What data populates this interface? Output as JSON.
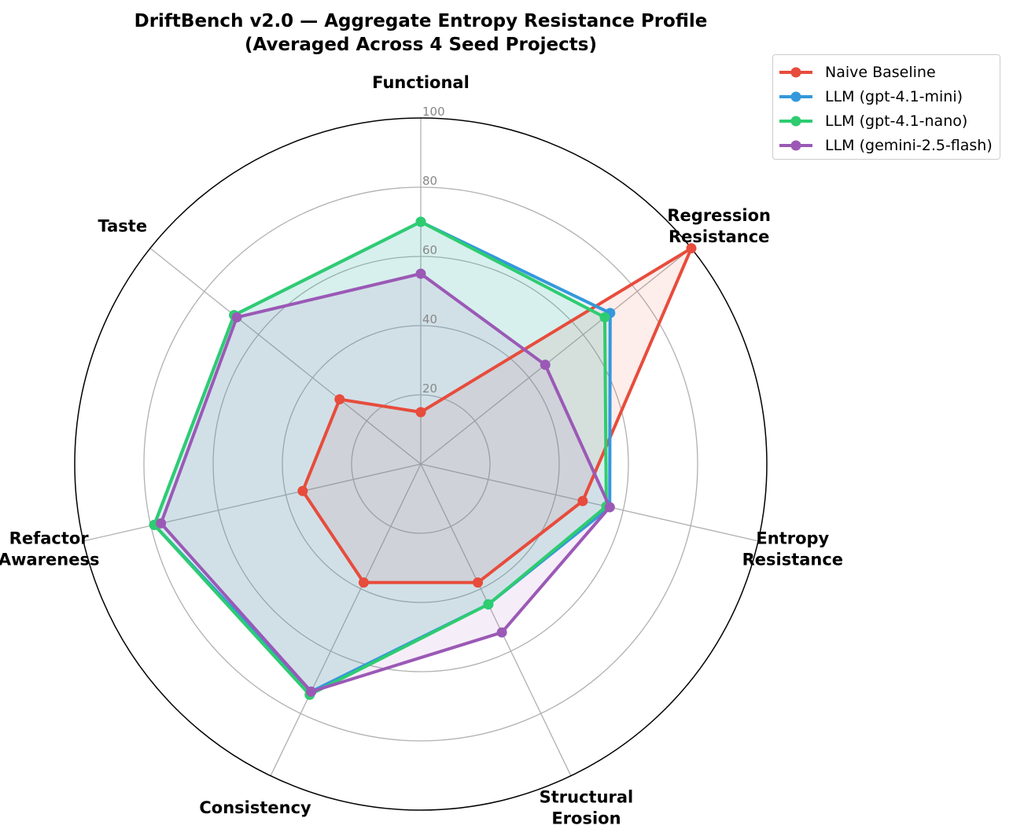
{
  "chart_data": {
    "type": "radar",
    "title": "DriftBench v2.0 — Aggregate Entropy Resistance Profile",
    "subtitle": "(Averaged Across 4 Seed Projects)",
    "axes": [
      "Functional",
      "Regression\nResistance",
      "Entropy\nResistance",
      "Structural\nErosion",
      "Consistency",
      "Refactor\nAwareness",
      "Taste"
    ],
    "radial_ticks": [
      20,
      40,
      60,
      80,
      100
    ],
    "rlim": [
      0,
      100
    ],
    "grid": true,
    "legend_position": "top-right",
    "series": [
      {
        "name": "Naive Baseline",
        "color": "#e74c3c",
        "values": [
          15,
          100,
          48,
          38,
          38,
          35,
          30
        ]
      },
      {
        "name": "LLM (gpt-4.1-mini)",
        "color": "#3498db",
        "values": [
          70,
          70,
          56,
          45,
          73,
          79,
          69
        ]
      },
      {
        "name": "LLM (gpt-4.1-nano)",
        "color": "#2ecc71",
        "values": [
          70,
          68,
          55,
          45,
          74,
          79,
          69
        ]
      },
      {
        "name": "LLM (gemini-2.5-flash)",
        "color": "#9b59b6",
        "values": [
          55,
          46,
          56,
          54,
          73,
          77,
          68
        ]
      }
    ]
  }
}
